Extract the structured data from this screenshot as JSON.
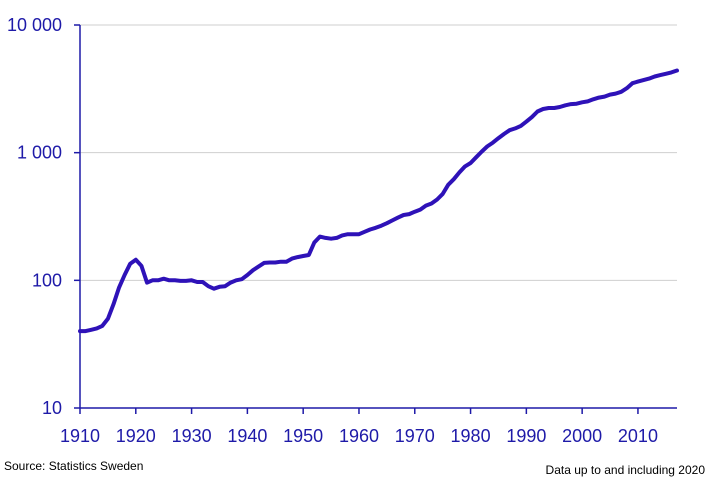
{
  "chart_data": {
    "type": "line",
    "title": "",
    "xlabel": "",
    "ylabel": "",
    "y_scale": "log",
    "ylim": [
      10,
      10000
    ],
    "xlim": [
      1910,
      2017
    ],
    "grid": true,
    "legend": "none",
    "y_ticks": [
      10,
      100,
      1000,
      10000
    ],
    "y_tick_labels": [
      "10",
      "100",
      "1 000",
      "10 000"
    ],
    "x_ticks": [
      1910,
      1920,
      1930,
      1940,
      1950,
      1960,
      1970,
      1980,
      1990,
      2000,
      2010
    ],
    "x_tick_labels": [
      "1910",
      "1920",
      "1930",
      "1940",
      "1950",
      "1960",
      "1970",
      "1980",
      "1990",
      "2000",
      "2010"
    ],
    "series": [
      {
        "color": "#2e12b8",
        "x": [
          1910,
          1911,
          1912,
          1913,
          1914,
          1915,
          1916,
          1917,
          1918,
          1919,
          1920,
          1921,
          1922,
          1923,
          1924,
          1925,
          1926,
          1927,
          1928,
          1929,
          1930,
          1931,
          1932,
          1933,
          1934,
          1935,
          1936,
          1937,
          1938,
          1939,
          1940,
          1941,
          1942,
          1943,
          1944,
          1945,
          1946,
          1947,
          1948,
          1949,
          1950,
          1951,
          1952,
          1953,
          1954,
          1955,
          1956,
          1957,
          1958,
          1959,
          1960,
          1961,
          1962,
          1963,
          1964,
          1965,
          1966,
          1967,
          1968,
          1969,
          1970,
          1971,
          1972,
          1973,
          1974,
          1975,
          1976,
          1977,
          1978,
          1979,
          1980,
          1981,
          1982,
          1983,
          1984,
          1985,
          1986,
          1987,
          1988,
          1989,
          1990,
          1991,
          1992,
          1993,
          1994,
          1995,
          1996,
          1997,
          1998,
          1999,
          2000,
          2001,
          2002,
          2003,
          2004,
          2005,
          2006,
          2007,
          2008,
          2009,
          2010,
          2011,
          2012,
          2013,
          2014,
          2015,
          2016,
          2017
        ],
        "values": [
          40,
          40,
          41,
          42,
          44,
          50,
          65,
          88,
          110,
          135,
          145,
          130,
          96,
          100,
          100,
          103,
          100,
          100,
          99,
          99,
          100,
          97,
          97,
          90,
          86,
          89,
          90,
          96,
          100,
          102,
          110,
          120,
          128,
          137,
          138,
          138,
          140,
          140,
          148,
          152,
          155,
          158,
          198,
          220,
          215,
          212,
          215,
          225,
          230,
          230,
          230,
          240,
          250,
          258,
          268,
          280,
          295,
          310,
          325,
          330,
          345,
          358,
          385,
          400,
          430,
          475,
          560,
          620,
          700,
          780,
          830,
          920,
          1020,
          1120,
          1200,
          1300,
          1400,
          1500,
          1550,
          1620,
          1750,
          1900,
          2100,
          2200,
          2240,
          2240,
          2280,
          2350,
          2400,
          2420,
          2480,
          2520,
          2620,
          2700,
          2750,
          2850,
          2900,
          3000,
          3200,
          3500,
          3600,
          3700,
          3800,
          3950,
          4050,
          4150,
          4250,
          4400
        ]
      }
    ]
  },
  "footer": {
    "source": "Source:  Statistics Sweden",
    "note": "Data up to and including 2020"
  }
}
